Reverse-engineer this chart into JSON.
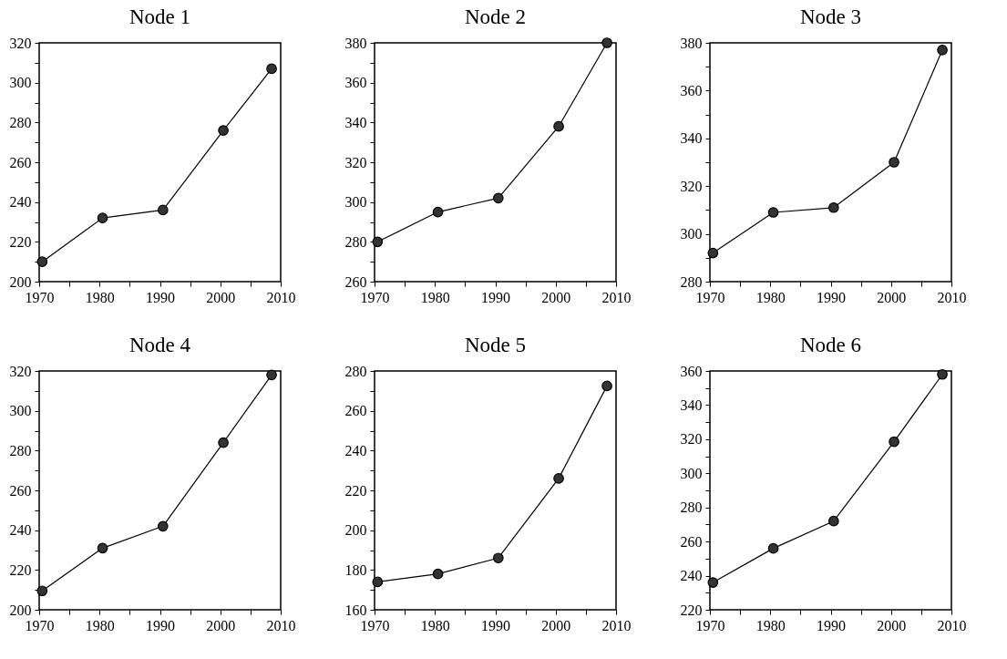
{
  "chart_data": [
    {
      "type": "line",
      "title": "Node 1",
      "x": [
        1970.5,
        1980.5,
        1990.5,
        2000.5,
        2008.5
      ],
      "series": [
        {
          "color": "#333333",
          "values": [
            210,
            232,
            236,
            276,
            307
          ]
        }
      ],
      "xlim": [
        1970,
        2010
      ],
      "xticks": [
        1970,
        {
          "value": 1975,
          "label": null
        },
        1980,
        {
          "value": 1985,
          "label": null
        },
        1990,
        {
          "value": 1995,
          "label": null
        },
        2000,
        {
          "value": 2005,
          "label": null
        },
        2010
      ],
      "ylim": [
        200,
        320
      ],
      "yticks": [
        200,
        {
          "value": 210,
          "label": null
        },
        220,
        {
          "value": 230,
          "label": null
        },
        240,
        {
          "value": 250,
          "label": null
        },
        260,
        {
          "value": 270,
          "label": null
        },
        280,
        {
          "value": 290,
          "label": null
        },
        300,
        {
          "value": 310,
          "label": null
        },
        320
      ],
      "marker": "circle"
    },
    {
      "type": "line",
      "title": "Node 2",
      "x": [
        1970.5,
        1980.5,
        1990.5,
        2000.5,
        2008.5
      ],
      "series": [
        {
          "color": "#333333",
          "values": [
            280,
            295,
            302,
            338,
            380
          ]
        }
      ],
      "xlim": [
        1970,
        2010
      ],
      "xticks": [
        1970,
        {
          "value": 1975,
          "label": null
        },
        1980,
        {
          "value": 1985,
          "label": null
        },
        1990,
        {
          "value": 1995,
          "label": null
        },
        2000,
        {
          "value": 2005,
          "label": null
        },
        2010
      ],
      "ylim": [
        260,
        380
      ],
      "yticks": [
        260,
        {
          "value": 270,
          "label": null
        },
        280,
        {
          "value": 290,
          "label": null
        },
        300,
        {
          "value": 310,
          "label": null
        },
        320,
        {
          "value": 330,
          "label": null
        },
        340,
        {
          "value": 350,
          "label": null
        },
        360,
        {
          "value": 370,
          "label": null
        },
        380
      ],
      "marker": "circle"
    },
    {
      "type": "line",
      "title": "Node 3",
      "x": [
        1970.5,
        1980.5,
        1990.5,
        2000.5,
        2008.5
      ],
      "series": [
        {
          "color": "#333333",
          "values": [
            292,
            309,
            311,
            330,
            377
          ]
        }
      ],
      "xlim": [
        1970,
        2010
      ],
      "xticks": [
        1970,
        {
          "value": 1975,
          "label": null
        },
        1980,
        {
          "value": 1985,
          "label": null
        },
        1990,
        {
          "value": 1995,
          "label": null
        },
        2000,
        {
          "value": 2005,
          "label": null
        },
        2010
      ],
      "ylim": [
        280,
        380
      ],
      "yticks": [
        280,
        {
          "value": 290,
          "label": null
        },
        300,
        {
          "value": 310,
          "label": null
        },
        320,
        {
          "value": 330,
          "label": null
        },
        340,
        {
          "value": 350,
          "label": null
        },
        360,
        {
          "value": 370,
          "label": null
        },
        380
      ],
      "marker": "circle"
    },
    {
      "type": "line",
      "title": "Node 4",
      "x": [
        1970.5,
        1980.5,
        1990.5,
        2000.5,
        2008.5
      ],
      "series": [
        {
          "color": "#333333",
          "values": [
            209.5,
            231,
            242,
            284,
            318
          ]
        }
      ],
      "xlim": [
        1970,
        2010
      ],
      "xticks": [
        1970,
        {
          "value": 1975,
          "label": null
        },
        1980,
        {
          "value": 1985,
          "label": null
        },
        1990,
        {
          "value": 1995,
          "label": null
        },
        2000,
        {
          "value": 2005,
          "label": null
        },
        2010
      ],
      "ylim": [
        200,
        320
      ],
      "yticks": [
        200,
        {
          "value": 210,
          "label": null
        },
        220,
        {
          "value": 230,
          "label": null
        },
        240,
        {
          "value": 250,
          "label": null
        },
        260,
        {
          "value": 270,
          "label": null
        },
        280,
        {
          "value": 290,
          "label": null
        },
        300,
        {
          "value": 310,
          "label": null
        },
        320
      ],
      "marker": "circle"
    },
    {
      "type": "line",
      "title": "Node 5",
      "x": [
        1970.5,
        1980.5,
        1990.5,
        2000.5,
        2008.5
      ],
      "series": [
        {
          "color": "#333333",
          "values": [
            174,
            178,
            186,
            226,
            272.5
          ]
        }
      ],
      "xlim": [
        1970,
        2010
      ],
      "xticks": [
        1970,
        {
          "value": 1975,
          "label": null
        },
        1980,
        {
          "value": 1985,
          "label": null
        },
        1990,
        {
          "value": 1995,
          "label": null
        },
        2000,
        {
          "value": 2005,
          "label": null
        },
        2010
      ],
      "ylim": [
        160,
        280
      ],
      "yticks": [
        160,
        {
          "value": 170,
          "label": null
        },
        180,
        {
          "value": 190,
          "label": null
        },
        200,
        {
          "value": 210,
          "label": null
        },
        220,
        {
          "value": 230,
          "label": null
        },
        240,
        {
          "value": 250,
          "label": null
        },
        260,
        {
          "value": 270,
          "label": null
        },
        280
      ],
      "marker": "circle"
    },
    {
      "type": "line",
      "title": "Node 6",
      "x": [
        1970.5,
        1980.5,
        1990.5,
        2000.5,
        2008.5
      ],
      "series": [
        {
          "color": "#333333",
          "values": [
            236,
            256,
            272,
            318.5,
            358
          ]
        }
      ],
      "xlim": [
        1970,
        2010
      ],
      "xticks": [
        1970,
        {
          "value": 1975,
          "label": null
        },
        1980,
        {
          "value": 1985,
          "label": null
        },
        1990,
        {
          "value": 1995,
          "label": null
        },
        2000,
        {
          "value": 2005,
          "label": null
        },
        2010
      ],
      "ylim": [
        220,
        360
      ],
      "yticks": [
        220,
        {
          "value": 230,
          "label": null
        },
        240,
        {
          "value": 250,
          "label": null
        },
        260,
        {
          "value": 270,
          "label": null
        },
        280,
        {
          "value": 290,
          "label": null
        },
        300,
        {
          "value": 310,
          "label": null
        },
        320,
        {
          "value": 330,
          "label": null
        },
        340,
        {
          "value": 350,
          "label": null
        },
        360
      ],
      "marker": "circle"
    }
  ]
}
